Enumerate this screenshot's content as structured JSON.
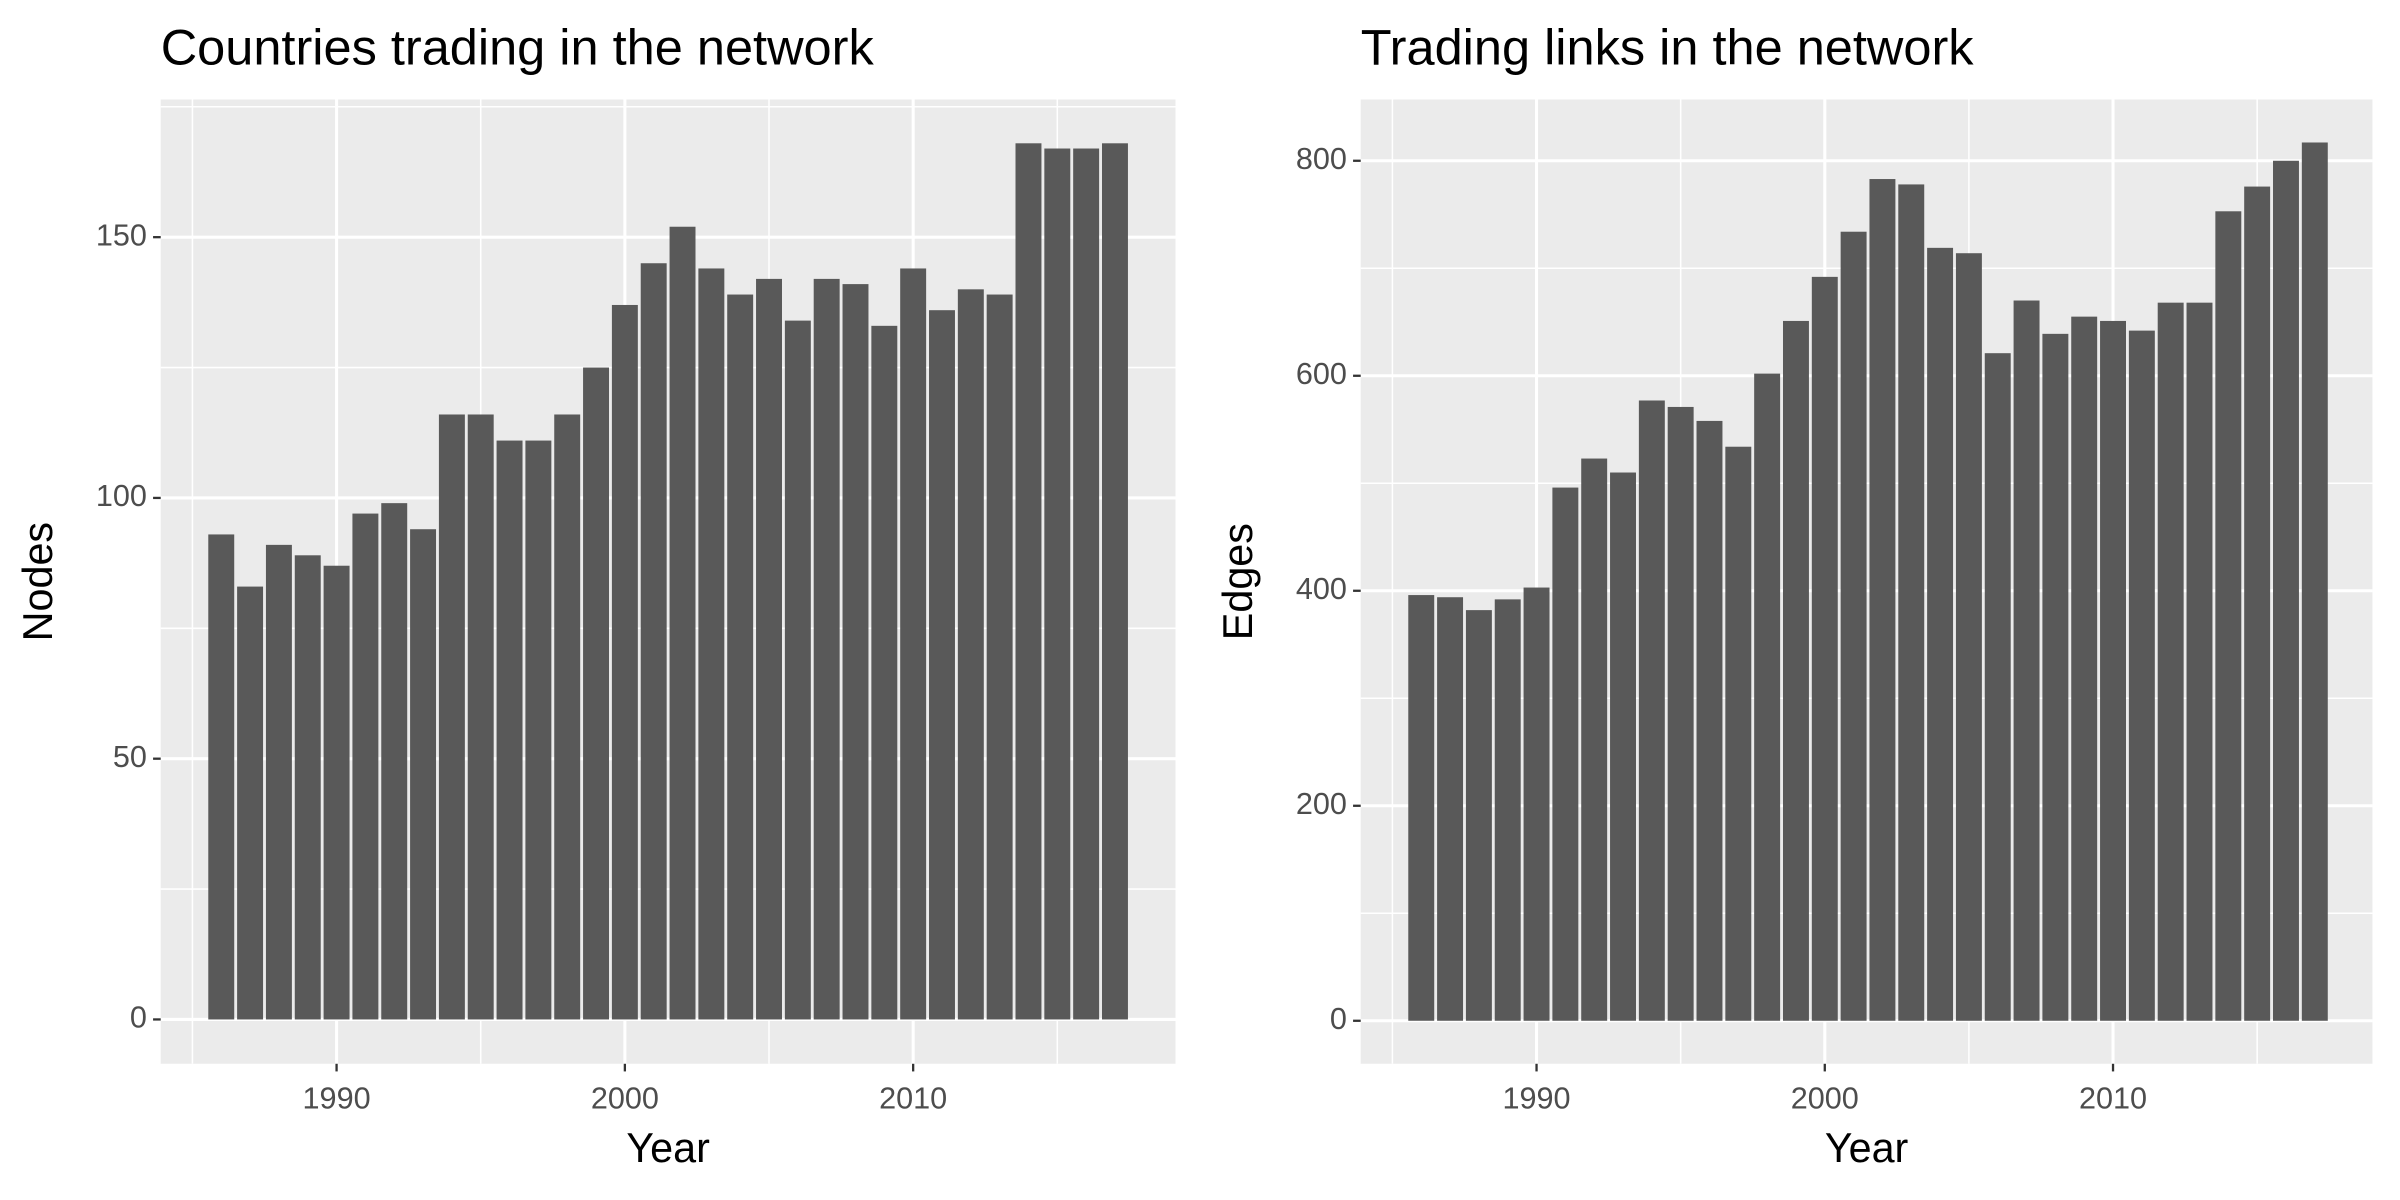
{
  "chart_data": [
    {
      "type": "bar",
      "title": "Countries trading in the network",
      "x_label": "Year",
      "y_label": "Nodes",
      "x": [
        1986,
        1987,
        1988,
        1989,
        1990,
        1991,
        1992,
        1993,
        1994,
        1995,
        1996,
        1997,
        1998,
        1999,
        2000,
        2001,
        2002,
        2003,
        2004,
        2005,
        2006,
        2007,
        2008,
        2009,
        2010,
        2011,
        2012,
        2013,
        2014,
        2015,
        2016,
        2017
      ],
      "values": [
        93,
        83,
        91,
        89,
        87,
        97,
        99,
        94,
        116,
        116,
        111,
        111,
        116,
        125,
        137,
        145,
        152,
        144,
        139,
        142,
        134,
        142,
        141,
        133,
        144,
        136,
        140,
        139,
        168,
        167,
        167,
        168
      ],
      "color": "#595959",
      "xlim": [
        1983.9,
        2019.1
      ],
      "xticks": [
        1990,
        2000,
        2010
      ],
      "minor_xticks": [
        1985,
        1995,
        2005,
        2015
      ],
      "ylim": [
        -8.5,
        176.4
      ],
      "yticks": [
        0,
        50,
        100,
        150
      ],
      "minor_yticks": [
        25,
        75,
        125,
        175
      ],
      "grid": true
    },
    {
      "type": "bar",
      "title": "Trading links in the network",
      "x_label": "Year",
      "y_label": "Edges",
      "x": [
        1986,
        1987,
        1988,
        1989,
        1990,
        1991,
        1992,
        1993,
        1994,
        1995,
        1996,
        1997,
        1998,
        1999,
        2000,
        2001,
        2002,
        2003,
        2004,
        2005,
        2006,
        2007,
        2008,
        2009,
        2010,
        2011,
        2012,
        2013,
        2014,
        2015,
        2016,
        2017
      ],
      "values": [
        396,
        394,
        382,
        392,
        403,
        496,
        523,
        510,
        577,
        571,
        558,
        534,
        602,
        651,
        692,
        734,
        783,
        778,
        719,
        714,
        621,
        670,
        639,
        655,
        651,
        642,
        668,
        668,
        753,
        776,
        800,
        817
      ],
      "color": "#595959",
      "xlim": [
        1983.9,
        2019.0
      ],
      "xticks": [
        1990,
        2000,
        2010
      ],
      "minor_xticks": [
        1985,
        1995,
        2005,
        2015
      ],
      "ylim": [
        -40,
        857
      ],
      "yticks": [
        0,
        200,
        400,
        600,
        800
      ],
      "minor_yticks": [
        100,
        300,
        500,
        700
      ],
      "grid": true
    }
  ]
}
